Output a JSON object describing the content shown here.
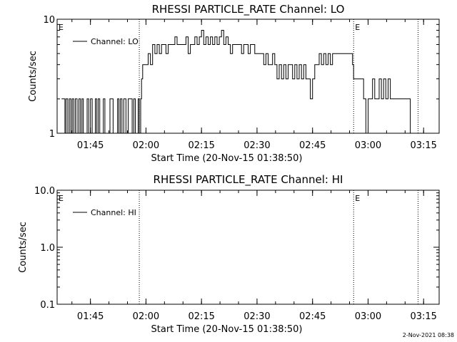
{
  "chart_data": [
    {
      "type": "line",
      "title": "RHESSI PARTICLE_RATE Channel: LO",
      "xlabel": "Start Time (20-Nov-15 01:38:50)",
      "ylabel": "Counts/sec",
      "yscale": "log",
      "ylim": [
        1,
        10
      ],
      "y_ticks": [
        {
          "v": 1,
          "label": "1"
        },
        {
          "v": 10,
          "label": "10"
        }
      ],
      "xlim_min": [
        1.6,
        3.32
      ],
      "x_ticks": [
        {
          "v": 1.75,
          "label": "01:45"
        },
        {
          "v": 2.0,
          "label": "02:00"
        },
        {
          "v": 2.25,
          "label": "02:15"
        },
        {
          "v": 2.5,
          "label": "02:30"
        },
        {
          "v": 2.75,
          "label": "02:45"
        },
        {
          "v": 3.0,
          "label": "03:00"
        },
        {
          "v": 3.25,
          "label": "03:15"
        }
      ],
      "legend": {
        "label": "Channel: LO",
        "placement": "top-left"
      },
      "event_lines": [
        {
          "x": 1.97,
          "label": ""
        },
        {
          "x": 2.935,
          "label": "E"
        },
        {
          "x": 3.225,
          "label": ""
        }
      ],
      "corner_marker": "E",
      "series": [
        {
          "name": "Channel: LO",
          "points": [
            [
              1.62,
              2
            ],
            [
              1.635,
              1
            ],
            [
              1.64,
              2
            ],
            [
              1.648,
              1
            ],
            [
              1.655,
              2
            ],
            [
              1.662,
              1
            ],
            [
              1.668,
              2
            ],
            [
              1.675,
              1
            ],
            [
              1.682,
              2
            ],
            [
              1.69,
              1
            ],
            [
              1.698,
              2
            ],
            [
              1.705,
              1
            ],
            [
              1.712,
              2
            ],
            [
              1.718,
              1
            ],
            [
              1.728,
              1
            ],
            [
              1.735,
              2
            ],
            [
              1.742,
              1
            ],
            [
              1.75,
              2
            ],
            [
              1.758,
              1
            ],
            [
              1.765,
              1
            ],
            [
              1.772,
              2
            ],
            [
              1.778,
              1
            ],
            [
              1.785,
              2
            ],
            [
              1.792,
              1
            ],
            [
              1.8,
              1
            ],
            [
              1.808,
              2
            ],
            [
              1.815,
              1
            ],
            [
              1.83,
              1
            ],
            [
              1.838,
              2
            ],
            [
              1.845,
              2
            ],
            [
              1.852,
              1
            ],
            [
              1.865,
              1
            ],
            [
              1.872,
              2
            ],
            [
              1.878,
              1
            ],
            [
              1.885,
              2
            ],
            [
              1.892,
              1
            ],
            [
              1.9,
              2
            ],
            [
              1.91,
              1
            ],
            [
              1.92,
              2
            ],
            [
              1.93,
              2
            ],
            [
              1.938,
              1
            ],
            [
              1.945,
              2
            ],
            [
              1.952,
              1
            ],
            [
              1.958,
              1
            ],
            [
              1.965,
              2
            ],
            [
              1.97,
              1
            ],
            [
              1.976,
              2
            ],
            [
              1.98,
              3
            ],
            [
              1.985,
              4
            ],
            [
              2.0,
              4
            ],
            [
              2.01,
              5
            ],
            [
              2.02,
              4
            ],
            [
              2.03,
              6
            ],
            [
              2.04,
              5
            ],
            [
              2.05,
              6
            ],
            [
              2.06,
              5
            ],
            [
              2.07,
              6
            ],
            [
              2.08,
              6
            ],
            [
              2.09,
              5
            ],
            [
              2.1,
              6
            ],
            [
              2.11,
              6
            ],
            [
              2.12,
              6
            ],
            [
              2.13,
              7
            ],
            [
              2.14,
              6
            ],
            [
              2.15,
              6
            ],
            [
              2.16,
              6
            ],
            [
              2.17,
              6
            ],
            [
              2.18,
              7
            ],
            [
              2.19,
              5
            ],
            [
              2.2,
              6
            ],
            [
              2.21,
              6
            ],
            [
              2.22,
              7
            ],
            [
              2.23,
              6
            ],
            [
              2.24,
              7
            ],
            [
              2.25,
              8
            ],
            [
              2.26,
              6
            ],
            [
              2.27,
              7
            ],
            [
              2.28,
              6
            ],
            [
              2.29,
              7
            ],
            [
              2.3,
              6
            ],
            [
              2.31,
              7
            ],
            [
              2.32,
              6
            ],
            [
              2.33,
              7
            ],
            [
              2.34,
              8
            ],
            [
              2.35,
              6
            ],
            [
              2.36,
              7
            ],
            [
              2.37,
              6
            ],
            [
              2.38,
              5
            ],
            [
              2.39,
              6
            ],
            [
              2.4,
              6
            ],
            [
              2.41,
              6
            ],
            [
              2.42,
              6
            ],
            [
              2.43,
              5
            ],
            [
              2.44,
              6
            ],
            [
              2.45,
              6
            ],
            [
              2.46,
              5
            ],
            [
              2.47,
              6
            ],
            [
              2.48,
              6
            ],
            [
              2.49,
              5
            ],
            [
              2.5,
              5
            ],
            [
              2.51,
              5
            ],
            [
              2.52,
              5
            ],
            [
              2.53,
              4
            ],
            [
              2.54,
              5
            ],
            [
              2.55,
              4
            ],
            [
              2.56,
              4
            ],
            [
              2.57,
              5
            ],
            [
              2.58,
              4
            ],
            [
              2.59,
              3
            ],
            [
              2.6,
              4
            ],
            [
              2.61,
              3
            ],
            [
              2.62,
              4
            ],
            [
              2.63,
              3
            ],
            [
              2.64,
              4
            ],
            [
              2.65,
              4
            ],
            [
              2.66,
              3
            ],
            [
              2.67,
              4
            ],
            [
              2.68,
              3
            ],
            [
              2.69,
              4
            ],
            [
              2.7,
              3
            ],
            [
              2.71,
              4
            ],
            [
              2.72,
              3
            ],
            [
              2.73,
              3
            ],
            [
              2.74,
              2
            ],
            [
              2.75,
              3
            ],
            [
              2.76,
              4
            ],
            [
              2.77,
              4
            ],
            [
              2.78,
              5
            ],
            [
              2.79,
              4
            ],
            [
              2.8,
              5
            ],
            [
              2.81,
              4
            ],
            [
              2.82,
              5
            ],
            [
              2.83,
              4
            ],
            [
              2.84,
              5
            ],
            [
              2.85,
              5
            ],
            [
              2.86,
              5
            ],
            [
              2.87,
              5
            ],
            [
              2.88,
              5
            ],
            [
              2.89,
              5
            ],
            [
              2.9,
              5
            ],
            [
              2.91,
              5
            ],
            [
              2.92,
              5
            ],
            [
              2.93,
              4
            ],
            [
              2.935,
              3
            ],
            [
              2.94,
              3
            ],
            [
              2.95,
              3
            ],
            [
              2.96,
              3
            ],
            [
              2.97,
              3
            ],
            [
              2.98,
              2
            ],
            [
              2.99,
              1
            ],
            [
              3.0,
              2
            ],
            [
              3.01,
              2
            ],
            [
              3.02,
              3
            ],
            [
              3.03,
              2
            ],
            [
              3.04,
              2
            ],
            [
              3.05,
              3
            ],
            [
              3.06,
              2
            ],
            [
              3.07,
              3
            ],
            [
              3.08,
              2
            ],
            [
              3.09,
              3
            ],
            [
              3.1,
              2
            ],
            [
              3.11,
              2
            ],
            [
              3.12,
              2
            ],
            [
              3.13,
              2
            ],
            [
              3.14,
              2
            ],
            [
              3.15,
              2
            ],
            [
              3.16,
              2
            ],
            [
              3.17,
              2
            ],
            [
              3.18,
              2
            ],
            [
              3.19,
              1
            ]
          ]
        }
      ]
    },
    {
      "type": "line",
      "title": "RHESSI PARTICLE_RATE Channel: HI",
      "xlabel": "Start Time (20-Nov-15 01:38:50)",
      "ylabel": "Counts/sec",
      "yscale": "log",
      "ylim": [
        0.1,
        10
      ],
      "y_ticks": [
        {
          "v": 0.1,
          "label": "0.1"
        },
        {
          "v": 1,
          "label": "1.0"
        },
        {
          "v": 10,
          "label": "10.0"
        }
      ],
      "xlim_min": [
        1.6,
        3.32
      ],
      "x_ticks": [
        {
          "v": 1.75,
          "label": "01:45"
        },
        {
          "v": 2.0,
          "label": "02:00"
        },
        {
          "v": 2.25,
          "label": "02:15"
        },
        {
          "v": 2.5,
          "label": "02:30"
        },
        {
          "v": 2.75,
          "label": "02:45"
        },
        {
          "v": 3.0,
          "label": "03:00"
        },
        {
          "v": 3.25,
          "label": "03:15"
        }
      ],
      "legend": {
        "label": "Channel: HI",
        "placement": "top-left"
      },
      "event_lines": [
        {
          "x": 1.97,
          "label": ""
        },
        {
          "x": 2.935,
          "label": "E"
        },
        {
          "x": 3.225,
          "label": ""
        }
      ],
      "corner_marker": "E",
      "series": [
        {
          "name": "Channel: HI",
          "points": []
        }
      ]
    }
  ],
  "footer": {
    "timestamp": "2-Nov-2021 08:38"
  }
}
